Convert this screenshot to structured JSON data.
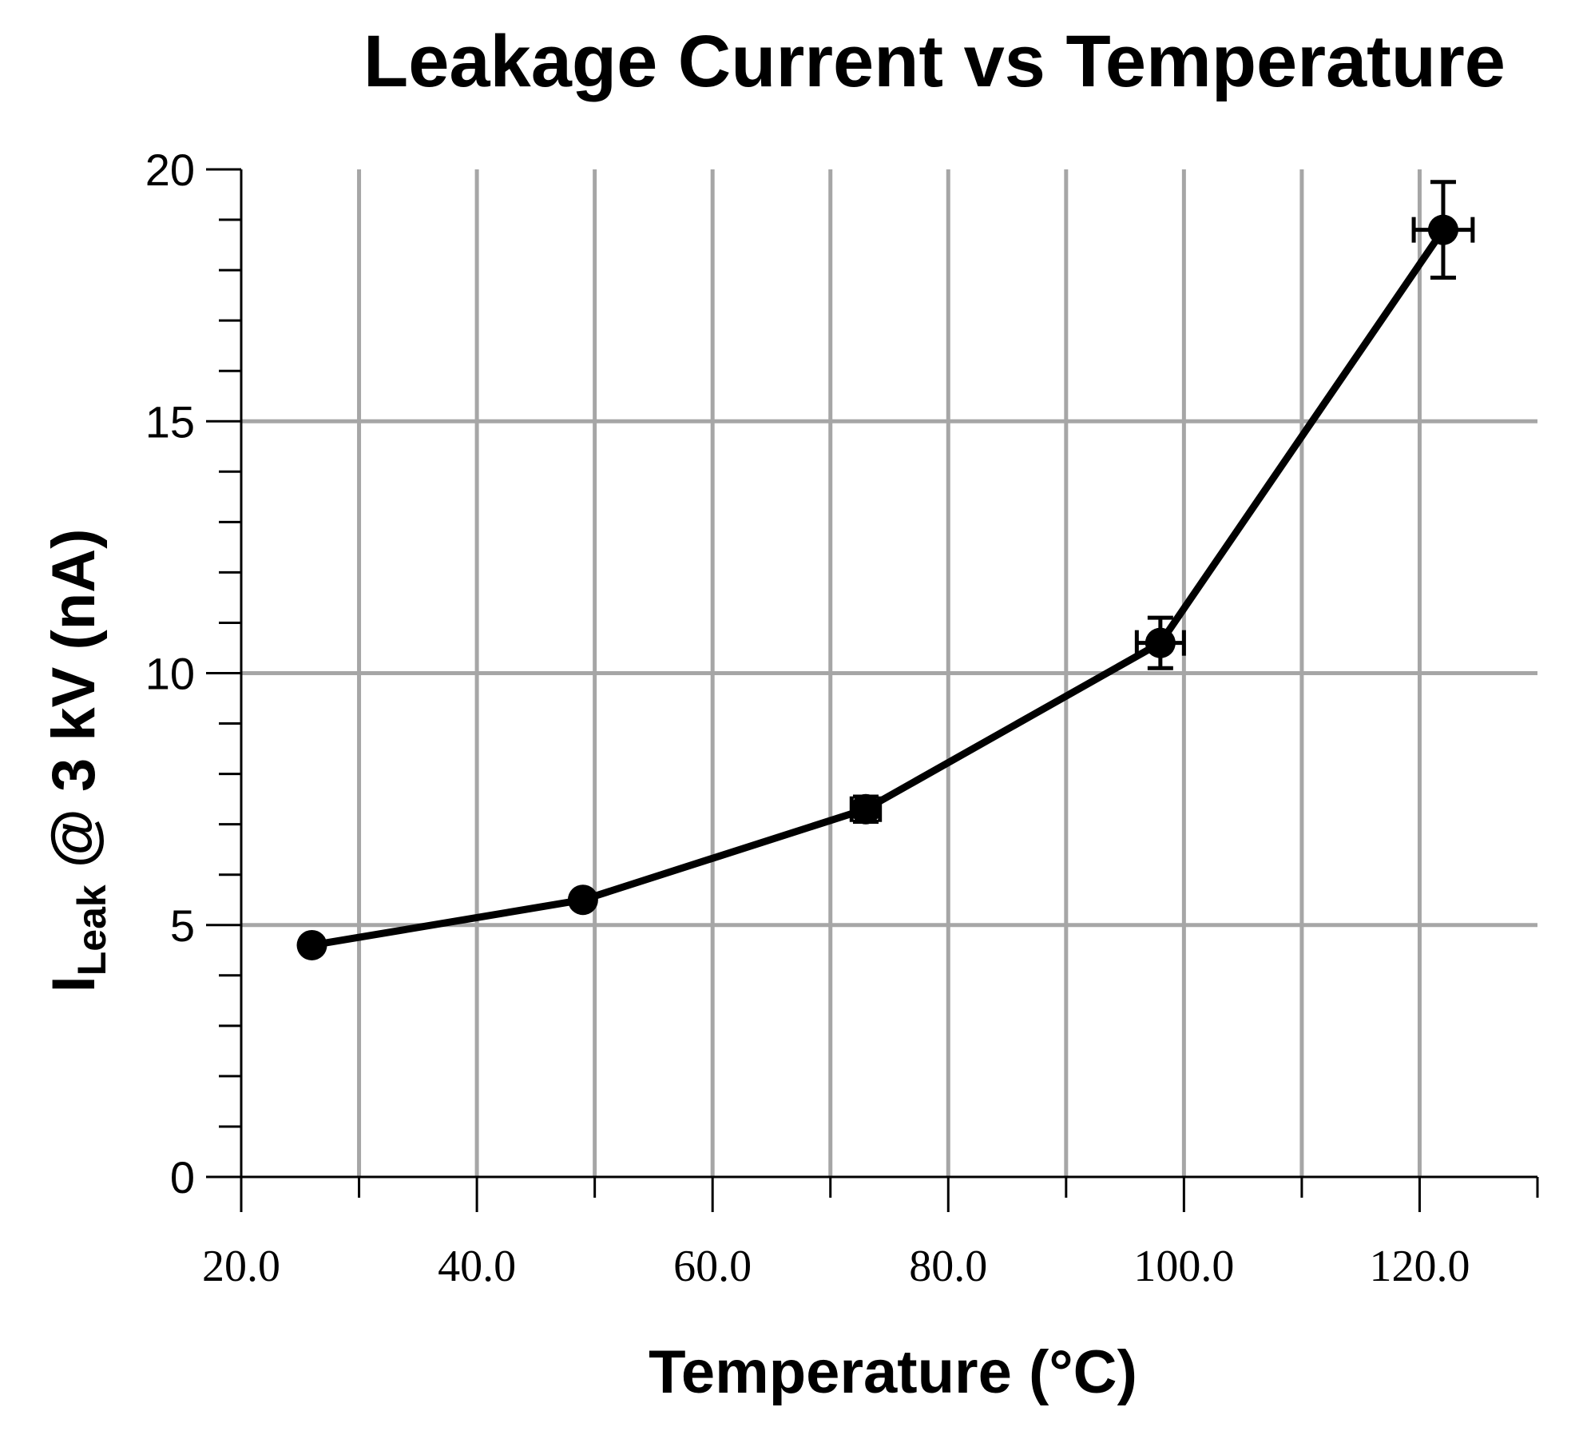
{
  "chart_data": {
    "type": "line",
    "title": "Leakage Current vs Temperature",
    "xlabel": "Temperature (°C)",
    "ylabel_main": "I",
    "ylabel_sub": "Leak",
    "ylabel_rest": " @ 3 kV (nA)",
    "xlim": [
      20,
      130
    ],
    "ylim": [
      0,
      20
    ],
    "xticks": [
      20,
      40,
      60,
      80,
      100,
      120
    ],
    "xtick_labels": [
      "20.0",
      "40.0",
      "60.0",
      "80.0",
      "100.0",
      "120.0"
    ],
    "yticks": [
      0,
      5,
      10,
      15,
      20
    ],
    "ytick_labels": [
      "0",
      "5",
      "10",
      "15",
      "20"
    ],
    "grid": true,
    "series": [
      {
        "name": "Leakage current",
        "x": [
          26,
          49,
          73,
          98,
          122
        ],
        "y": [
          4.6,
          5.5,
          7.3,
          10.6,
          18.8
        ],
        "yerr": [
          0.1,
          0.15,
          0.25,
          0.5,
          0.95
        ],
        "xerr": [
          0.3,
          0.5,
          1.2,
          2.0,
          2.5
        ]
      }
    ]
  }
}
